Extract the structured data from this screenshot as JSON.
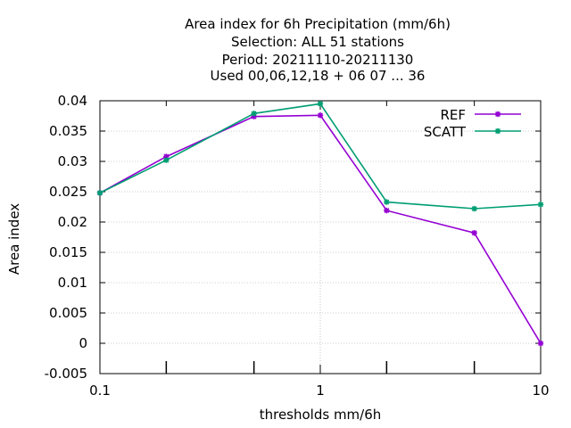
{
  "chart_data": {
    "type": "line",
    "title_lines": [
      "Area index  for 6h Precipitation (mm/6h)",
      "Selection: ALL     51 stations",
      "Period: 20211110-20211130",
      "Used  00,06,12,18 + 06 07 ... 36"
    ],
    "xlabel": "thresholds mm/6h",
    "ylabel": "Area index",
    "x_scale": "log",
    "xlim": [
      0.1,
      10
    ],
    "ylim": [
      -0.005,
      0.04
    ],
    "x_tick_labels": [
      {
        "value": 0.1,
        "label": "0.1"
      },
      {
        "value": 1,
        "label": "1"
      },
      {
        "value": 10,
        "label": "10"
      }
    ],
    "y_tick_labels": [
      {
        "value": 0.04,
        "label": "0.04"
      },
      {
        "value": 0.035,
        "label": "0.035"
      },
      {
        "value": 0.03,
        "label": "0.03"
      },
      {
        "value": 0.025,
        "label": "0.025"
      },
      {
        "value": 0.02,
        "label": "0.02"
      },
      {
        "value": 0.015,
        "label": "0.015"
      },
      {
        "value": 0.01,
        "label": "0.01"
      },
      {
        "value": 0.005,
        "label": "0.005"
      },
      {
        "value": 0,
        "label": "0"
      },
      {
        "value": -0.005,
        "label": "-0.005"
      }
    ],
    "grid": true,
    "legend_position": "top-right",
    "x": [
      0.1,
      0.2,
      0.5,
      1,
      2,
      5,
      10
    ],
    "series": [
      {
        "name": "REF",
        "color": "#9400d3",
        "values": [
          0.0248,
          0.0308,
          0.0374,
          0.0376,
          0.0219,
          0.0182,
          0.0
        ]
      },
      {
        "name": "SCATT",
        "color": "#009e73",
        "values": [
          0.0248,
          0.0302,
          0.0379,
          0.0395,
          0.0233,
          0.0222,
          0.0229
        ]
      }
    ]
  }
}
